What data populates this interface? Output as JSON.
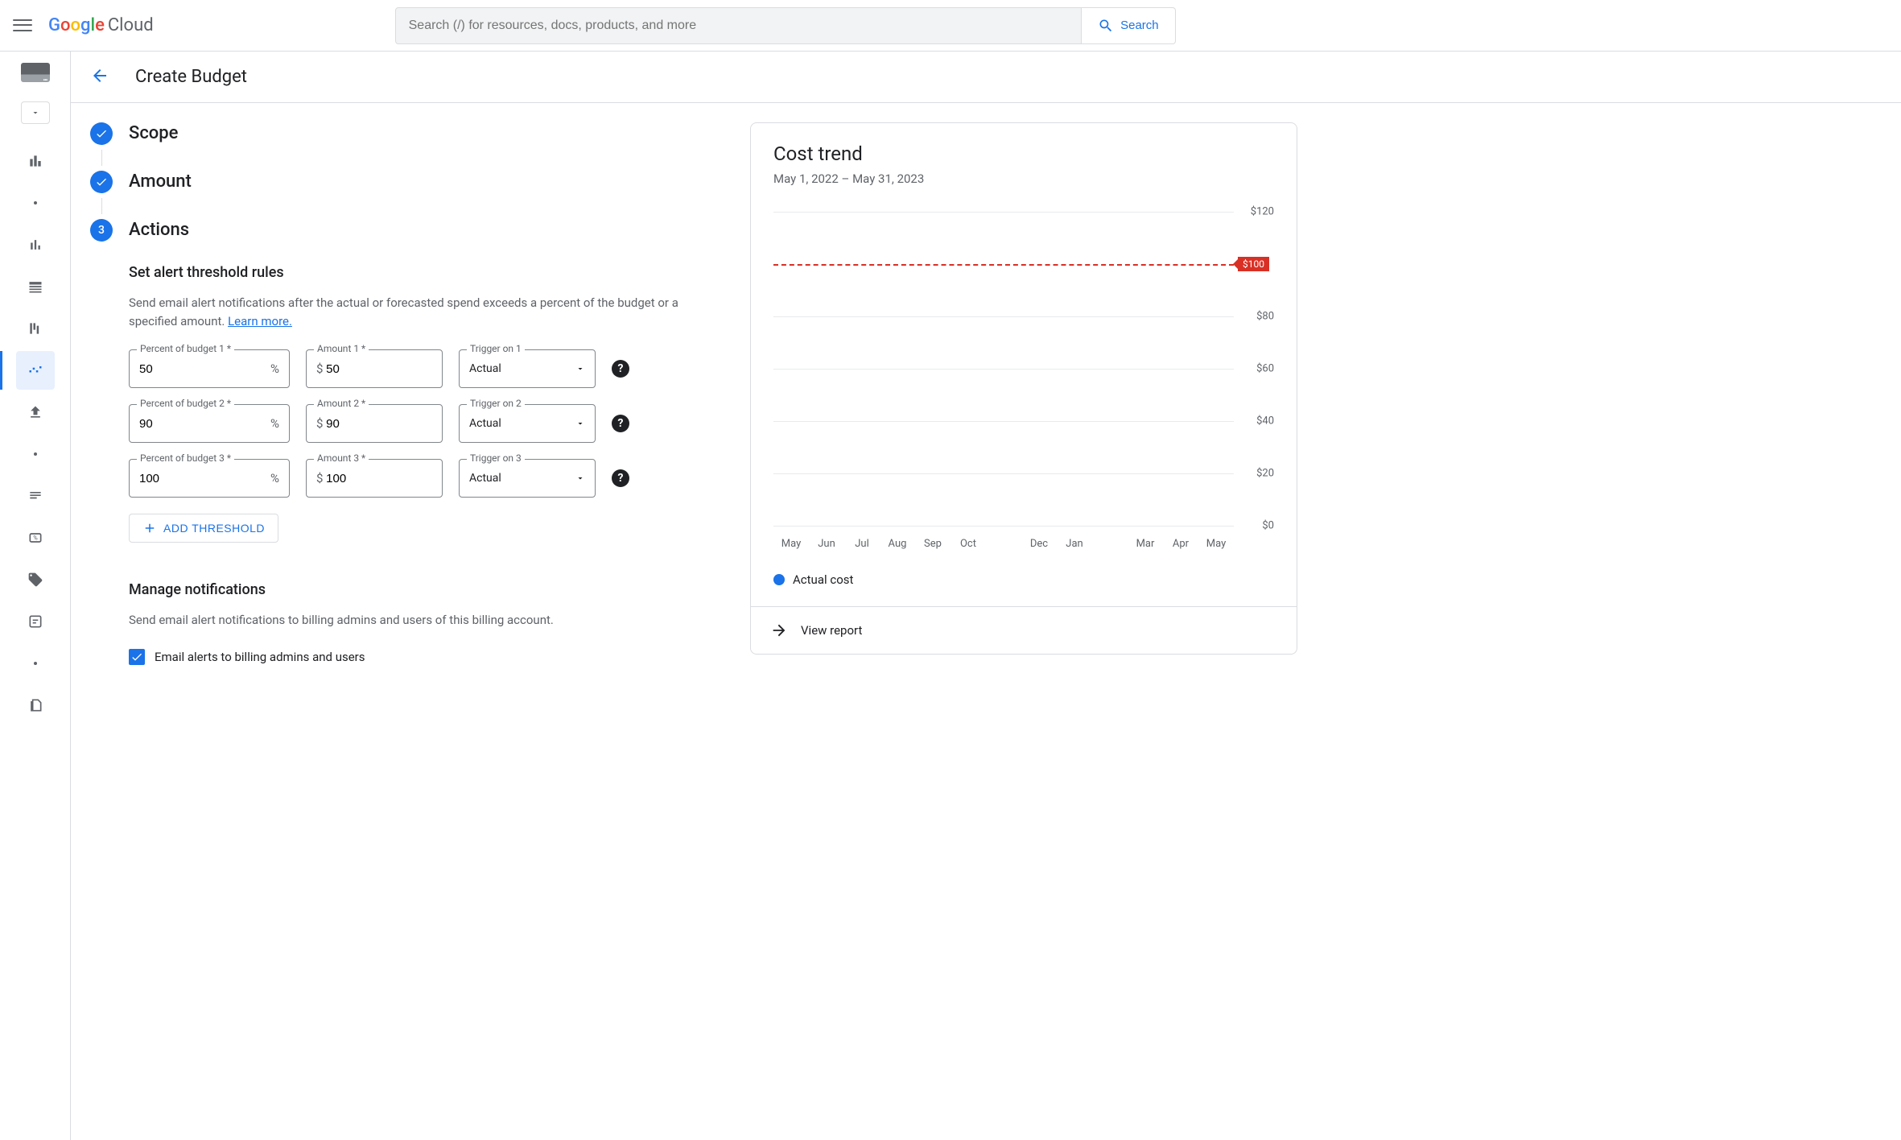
{
  "header": {
    "product_name": "Cloud",
    "search_placeholder": "Search (/) for resources, docs, products, and more",
    "search_button": "Search"
  },
  "page": {
    "title": "Create Budget"
  },
  "steps": {
    "scope": "Scope",
    "amount": "Amount",
    "actions": "Actions",
    "actions_number": "3"
  },
  "thresholds": {
    "section_title": "Set alert threshold rules",
    "description": "Send email alert notifications after the actual or forecasted spend exceeds a percent of the budget or a specified amount. ",
    "learn_more": "Learn more.",
    "percent_label_1": "Percent of budget 1 *",
    "percent_label_2": "Percent of budget 2 *",
    "percent_label_3": "Percent of budget 3 *",
    "amount_label_1": "Amount 1 *",
    "amount_label_2": "Amount 2 *",
    "amount_label_3": "Amount 3 *",
    "trigger_label_1": "Trigger on 1",
    "trigger_label_2": "Trigger on 2",
    "trigger_label_3": "Trigger on 3",
    "rows": [
      {
        "percent": "50",
        "amount": "50",
        "trigger": "Actual"
      },
      {
        "percent": "90",
        "amount": "90",
        "trigger": "Actual"
      },
      {
        "percent": "100",
        "amount": "100",
        "trigger": "Actual"
      }
    ],
    "add_button": "ADD THRESHOLD"
  },
  "notifications": {
    "title": "Manage notifications",
    "description": "Send email alert notifications to billing admins and users of this billing account.",
    "checkbox_label": "Email alerts to billing admins and users"
  },
  "cost_trend": {
    "title": "Cost trend",
    "date_range": "May 1, 2022 – May 31, 2023",
    "type": "bar",
    "ylim": [
      0,
      120
    ],
    "ytick_step": 20,
    "y_labels": [
      "$0",
      "$20",
      "$40",
      "$60",
      "$80",
      "$120"
    ],
    "y_positions": [
      100,
      83.3,
      66.6,
      50,
      33.3,
      0
    ],
    "budget_value": 100,
    "budget_label": "$100",
    "budget_position_pct": 16.7,
    "budget_line_color": "#d93025",
    "grid_color": "#e8eaed",
    "background_color": "#ffffff",
    "series_color": "#1a73e8",
    "x_labels": [
      "May",
      "Jun",
      "Jul",
      "Aug",
      "Sep",
      "Oct",
      "",
      "Dec",
      "Jan",
      "",
      "Mar",
      "Apr",
      "May"
    ],
    "legend_label": "Actual cost",
    "view_report": "View report"
  }
}
